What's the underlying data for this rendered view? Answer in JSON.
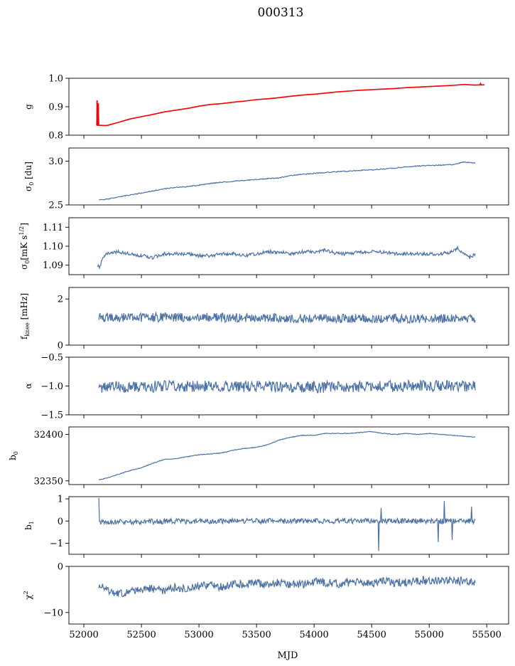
{
  "figure_title": "000313",
  "chart_data": {
    "type": "line",
    "x_label": "MJD",
    "x_ticks": [
      52000,
      52500,
      53000,
      53500,
      54000,
      54500,
      55000,
      55500
    ],
    "xlim": [
      51870,
      55690
    ],
    "series_color": "#4c72a6",
    "fit_color": "#ff0000",
    "panels": [
      {
        "name": "g",
        "ylabel": "g",
        "ylim": [
          0.8,
          1.0
        ],
        "yticks": [
          0.8,
          0.9,
          1.0
        ],
        "ytick_labels": [
          "0.8",
          "0.9",
          "1.0"
        ],
        "x_range": [
          52110,
          55480
        ],
        "points": [
          [
            52110,
            0.835
          ],
          [
            52200,
            0.834
          ],
          [
            52300,
            0.845
          ],
          [
            52400,
            0.857
          ],
          [
            52500,
            0.865
          ],
          [
            52600,
            0.873
          ],
          [
            52700,
            0.882
          ],
          [
            52800,
            0.888
          ],
          [
            52900,
            0.894
          ],
          [
            53000,
            0.902
          ],
          [
            53100,
            0.908
          ],
          [
            53200,
            0.911
          ],
          [
            53300,
            0.916
          ],
          [
            53400,
            0.92
          ],
          [
            53500,
            0.925
          ],
          [
            53600,
            0.928
          ],
          [
            53700,
            0.932
          ],
          [
            53800,
            0.937
          ],
          [
            53900,
            0.941
          ],
          [
            54000,
            0.944
          ],
          [
            54100,
            0.948
          ],
          [
            54200,
            0.952
          ],
          [
            54300,
            0.955
          ],
          [
            54400,
            0.958
          ],
          [
            54500,
            0.96
          ],
          [
            54600,
            0.962
          ],
          [
            54700,
            0.964
          ],
          [
            54800,
            0.967
          ],
          [
            54900,
            0.969
          ],
          [
            55000,
            0.971
          ],
          [
            55100,
            0.973
          ],
          [
            55200,
            0.975
          ],
          [
            55300,
            0.978
          ],
          [
            55400,
            0.976
          ],
          [
            55480,
            0.977
          ]
        ],
        "fit_points": [
          [
            52110,
            0.835
          ],
          [
            52200,
            0.834
          ],
          [
            52300,
            0.845
          ],
          [
            52400,
            0.857
          ],
          [
            52500,
            0.865
          ],
          [
            52600,
            0.873
          ],
          [
            52700,
            0.882
          ],
          [
            52800,
            0.888
          ],
          [
            52900,
            0.894
          ],
          [
            53000,
            0.902
          ],
          [
            53100,
            0.908
          ],
          [
            53200,
            0.911
          ],
          [
            53300,
            0.916
          ],
          [
            53400,
            0.92
          ],
          [
            53500,
            0.925
          ],
          [
            53600,
            0.928
          ],
          [
            53700,
            0.932
          ],
          [
            53800,
            0.937
          ],
          [
            53900,
            0.941
          ],
          [
            54000,
            0.944
          ],
          [
            54100,
            0.948
          ],
          [
            54200,
            0.952
          ],
          [
            54300,
            0.955
          ],
          [
            54400,
            0.958
          ],
          [
            54500,
            0.96
          ],
          [
            54600,
            0.962
          ],
          [
            54700,
            0.964
          ],
          [
            54800,
            0.967
          ],
          [
            54900,
            0.969
          ],
          [
            55000,
            0.971
          ],
          [
            55100,
            0.973
          ],
          [
            55200,
            0.975
          ],
          [
            55300,
            0.978
          ],
          [
            55400,
            0.976
          ],
          [
            55480,
            0.977
          ]
        ],
        "spikes": [
          [
            52115,
            0.835,
            0.922
          ],
          [
            52125,
            0.835,
            0.912
          ],
          [
            55445,
            0.975,
            0.983
          ]
        ],
        "noise_amp": 0.0008,
        "seed": 1
      },
      {
        "name": "sigma0-du",
        "ylabel": "σ0 [du]",
        "ylim": [
          2.5,
          3.15
        ],
        "yticks": [
          2.5,
          3.0
        ],
        "ytick_labels": [
          "2.5",
          "3.0"
        ],
        "x_range": [
          52130,
          55400
        ],
        "points": [
          [
            52130,
            2.555
          ],
          [
            52200,
            2.565
          ],
          [
            52300,
            2.59
          ],
          [
            52400,
            2.615
          ],
          [
            52500,
            2.635
          ],
          [
            52600,
            2.66
          ],
          [
            52700,
            2.685
          ],
          [
            52800,
            2.7
          ],
          [
            52900,
            2.71
          ],
          [
            53000,
            2.725
          ],
          [
            53100,
            2.745
          ],
          [
            53200,
            2.76
          ],
          [
            53300,
            2.77
          ],
          [
            53400,
            2.78
          ],
          [
            53500,
            2.79
          ],
          [
            53600,
            2.8
          ],
          [
            53700,
            2.81
          ],
          [
            53800,
            2.835
          ],
          [
            53900,
            2.85
          ],
          [
            54000,
            2.86
          ],
          [
            54100,
            2.87
          ],
          [
            54200,
            2.88
          ],
          [
            54300,
            2.885
          ],
          [
            54400,
            2.895
          ],
          [
            54500,
            2.9
          ],
          [
            54600,
            2.91
          ],
          [
            54700,
            2.92
          ],
          [
            54800,
            2.935
          ],
          [
            54900,
            2.945
          ],
          [
            55000,
            2.95
          ],
          [
            55100,
            2.955
          ],
          [
            55200,
            2.96
          ],
          [
            55300,
            2.99
          ],
          [
            55400,
            2.98
          ]
        ],
        "noise_amp": 0.005,
        "seed": 2
      },
      {
        "name": "sigma0-mk",
        "ylabel": "σ0[mK s1/2]",
        "ylim": [
          1.085,
          1.115
        ],
        "yticks": [
          1.09,
          1.1,
          1.11
        ],
        "ytick_labels": [
          "1.09",
          "1.10",
          "1.11"
        ],
        "x_range": [
          52120,
          55400
        ],
        "points": [
          [
            52120,
            1.09
          ],
          [
            52140,
            1.089
          ],
          [
            52160,
            1.094
          ],
          [
            52200,
            1.096
          ],
          [
            52300,
            1.097
          ],
          [
            52400,
            1.096
          ],
          [
            52500,
            1.095
          ],
          [
            52600,
            1.094
          ],
          [
            52700,
            1.096
          ],
          [
            52800,
            1.096
          ],
          [
            52900,
            1.096
          ],
          [
            53000,
            1.095
          ],
          [
            53100,
            1.095
          ],
          [
            53200,
            1.096
          ],
          [
            53300,
            1.096
          ],
          [
            53400,
            1.095
          ],
          [
            53500,
            1.096
          ],
          [
            53600,
            1.097
          ],
          [
            53700,
            1.097
          ],
          [
            53800,
            1.096
          ],
          [
            53900,
            1.097
          ],
          [
            54000,
            1.097
          ],
          [
            54100,
            1.098
          ],
          [
            54200,
            1.096
          ],
          [
            54300,
            1.096
          ],
          [
            54400,
            1.097
          ],
          [
            54500,
            1.097
          ],
          [
            54600,
            1.097
          ],
          [
            54700,
            1.096
          ],
          [
            54800,
            1.096
          ],
          [
            54900,
            1.096
          ],
          [
            55000,
            1.096
          ],
          [
            55100,
            1.096
          ],
          [
            55200,
            1.097
          ],
          [
            55250,
            1.099
          ],
          [
            55300,
            1.096
          ],
          [
            55350,
            1.094
          ],
          [
            55400,
            1.096
          ]
        ],
        "noise_amp": 0.0009,
        "seed": 3
      },
      {
        "name": "fknee",
        "ylabel": "fknee [mHz]",
        "ylim": [
          0,
          2.5
        ],
        "yticks": [
          0,
          2
        ],
        "ytick_labels": [
          "0",
          "2"
        ],
        "x_range": [
          52130,
          55400
        ],
        "points": [
          [
            52130,
            1.2
          ],
          [
            53000,
            1.2
          ],
          [
            54000,
            1.15
          ],
          [
            55000,
            1.15
          ],
          [
            55400,
            1.15
          ]
        ],
        "noise_amp": 0.2,
        "seed": 4
      },
      {
        "name": "alpha",
        "ylabel": "α",
        "ylim": [
          -1.5,
          -0.5
        ],
        "yticks": [
          -1.5,
          -1.0,
          -0.5
        ],
        "ytick_labels": [
          "−1.5",
          "−1.0",
          "−0.5"
        ],
        "x_range": [
          52130,
          55400
        ],
        "points": [
          [
            52130,
            -1.02
          ],
          [
            53000,
            -1.0
          ],
          [
            54000,
            -1.02
          ],
          [
            55000,
            -1.0
          ],
          [
            55400,
            -1.0
          ]
        ],
        "noise_amp": 0.1,
        "seed": 5
      },
      {
        "name": "b0",
        "ylabel": "b0",
        "ylim": [
          32346,
          32408
        ],
        "yticks": [
          32350,
          32400
        ],
        "ytick_labels": [
          "32350",
          "32400"
        ],
        "x_range": [
          52130,
          55400
        ],
        "points": [
          [
            52130,
            32351
          ],
          [
            52200,
            32353
          ],
          [
            52300,
            32357
          ],
          [
            52400,
            32361
          ],
          [
            52500,
            32364
          ],
          [
            52600,
            32369
          ],
          [
            52700,
            32373
          ],
          [
            52800,
            32374
          ],
          [
            52900,
            32376
          ],
          [
            53000,
            32378
          ],
          [
            53100,
            32379
          ],
          [
            53200,
            32380
          ],
          [
            53300,
            32383
          ],
          [
            53400,
            32385
          ],
          [
            53500,
            32386
          ],
          [
            53600,
            32389
          ],
          [
            53700,
            32394
          ],
          [
            53800,
            32397
          ],
          [
            53900,
            32399
          ],
          [
            54000,
            32399
          ],
          [
            54100,
            32401
          ],
          [
            54200,
            32401
          ],
          [
            54300,
            32401
          ],
          [
            54400,
            32402
          ],
          [
            54500,
            32403
          ],
          [
            54600,
            32401
          ],
          [
            54700,
            32400
          ],
          [
            54800,
            32401
          ],
          [
            54900,
            32400
          ],
          [
            55000,
            32401
          ],
          [
            55100,
            32400
          ],
          [
            55200,
            32399
          ],
          [
            55300,
            32398
          ],
          [
            55400,
            32397
          ]
        ],
        "noise_amp": 0.35,
        "seed": 6
      },
      {
        "name": "b1",
        "ylabel": "b1",
        "ylim": [
          -1.5,
          1.1
        ],
        "yticks": [
          -1,
          0,
          1
        ],
        "ytick_labels": [
          "−1",
          "0",
          "1"
        ],
        "x_range": [
          52130,
          55400
        ],
        "points": [
          [
            52130,
            -0.05
          ],
          [
            53000,
            0.0
          ],
          [
            54000,
            0.0
          ],
          [
            55000,
            0.0
          ],
          [
            55400,
            0.0
          ]
        ],
        "noise_amp": 0.12,
        "spikes": [
          [
            52130,
            0,
            1.05
          ],
          [
            54560,
            0,
            -1.35
          ],
          [
            54580,
            0,
            0.6
          ],
          [
            55080,
            0,
            -0.95
          ],
          [
            55130,
            0,
            0.9
          ],
          [
            55200,
            0,
            -0.85
          ],
          [
            55370,
            0,
            0.65
          ]
        ],
        "seed": 7
      },
      {
        "name": "chi2",
        "ylabel": "χ2",
        "ylim": [
          -12.5,
          0
        ],
        "yticks": [
          -10,
          0
        ],
        "ytick_labels": [
          "−10",
          "0"
        ],
        "x_range": [
          52130,
          55400
        ],
        "points": [
          [
            52130,
            -4.0
          ],
          [
            52200,
            -5.0
          ],
          [
            52300,
            -6.0
          ],
          [
            52400,
            -5.5
          ],
          [
            52500,
            -5.0
          ],
          [
            52600,
            -4.8
          ],
          [
            52700,
            -5.2
          ],
          [
            52800,
            -4.5
          ],
          [
            52900,
            -5.0
          ],
          [
            53000,
            -4.2
          ],
          [
            53100,
            -4.0
          ],
          [
            53200,
            -4.5
          ],
          [
            53300,
            -3.8
          ],
          [
            53400,
            -4.0
          ],
          [
            53500,
            -3.5
          ],
          [
            53600,
            -4.0
          ],
          [
            53700,
            -3.5
          ],
          [
            53800,
            -3.8
          ],
          [
            53900,
            -4.0
          ],
          [
            54000,
            -3.2
          ],
          [
            54100,
            -3.5
          ],
          [
            54200,
            -3.8
          ],
          [
            54300,
            -3.5
          ],
          [
            54400,
            -3.5
          ],
          [
            54500,
            -3.8
          ],
          [
            54600,
            -3.2
          ],
          [
            54700,
            -3.5
          ],
          [
            54800,
            -3.5
          ],
          [
            54900,
            -3.0
          ],
          [
            55000,
            -3.2
          ],
          [
            55100,
            -3.0
          ],
          [
            55200,
            -3.0
          ],
          [
            55300,
            -3.2
          ],
          [
            55400,
            -3.5
          ]
        ],
        "noise_amp": 0.9,
        "seed": 8
      }
    ]
  }
}
